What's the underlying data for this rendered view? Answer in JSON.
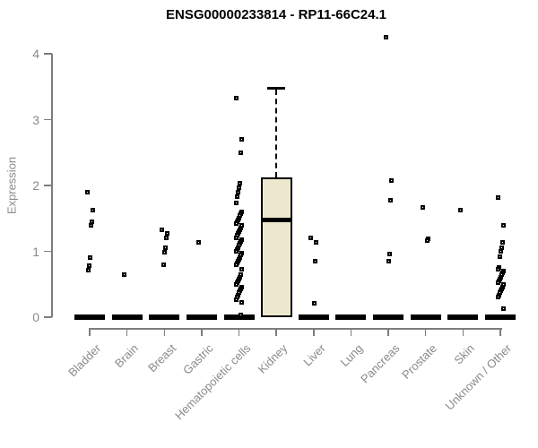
{
  "chart_data": {
    "type": "boxplot",
    "title": "ENSG00000233814 - RP11-66C24.1",
    "ylabel": "Expression",
    "ylim": [
      0,
      4
    ],
    "yticks": [
      0,
      1,
      2,
      3,
      4
    ],
    "grid": false,
    "legend": "none",
    "categories": [
      "Bladder",
      "Brain",
      "Breast",
      "Gastric",
      "Hematopoietic cells",
      "Kidney",
      "Liver",
      "Lung",
      "Pancreas",
      "Prostate",
      "Skin",
      "Unknown / Other"
    ],
    "boxes": [
      {
        "category": "Bladder",
        "q1": 0,
        "median": 0,
        "q3": 0,
        "whisker_low": 0,
        "whisker_high": 0
      },
      {
        "category": "Brain",
        "q1": 0,
        "median": 0,
        "q3": 0,
        "whisker_low": 0,
        "whisker_high": 0
      },
      {
        "category": "Breast",
        "q1": 0,
        "median": 0,
        "q3": 0,
        "whisker_low": 0,
        "whisker_high": 0
      },
      {
        "category": "Gastric",
        "q1": 0,
        "median": 0,
        "q3": 0,
        "whisker_low": 0,
        "whisker_high": 0
      },
      {
        "category": "Hematopoietic cells",
        "q1": 0,
        "median": 0,
        "q3": 0,
        "whisker_low": 0,
        "whisker_high": 0
      },
      {
        "category": "Kidney",
        "q1": 0,
        "median": 1.47,
        "q3": 2.12,
        "whisker_low": 0,
        "whisker_high": 3.47
      },
      {
        "category": "Liver",
        "q1": 0,
        "median": 0,
        "q3": 0,
        "whisker_low": 0,
        "whisker_high": 0
      },
      {
        "category": "Lung",
        "q1": 0,
        "median": 0,
        "q3": 0,
        "whisker_low": 0,
        "whisker_high": 0
      },
      {
        "category": "Pancreas",
        "q1": 0,
        "median": 0,
        "q3": 0,
        "whisker_low": 0,
        "whisker_high": 0
      },
      {
        "category": "Prostate",
        "q1": 0,
        "median": 0,
        "q3": 0,
        "whisker_low": 0,
        "whisker_high": 0
      },
      {
        "category": "Skin",
        "q1": 0,
        "median": 0,
        "q3": 0,
        "whisker_low": 0,
        "whisker_high": 0
      },
      {
        "category": "Unknown / Other",
        "q1": 0,
        "median": 0,
        "q3": 0,
        "whisker_low": 0,
        "whisker_high": 0
      }
    ],
    "points": [
      {
        "category": "Bladder",
        "values": [
          1.9,
          1.63,
          1.45,
          1.4,
          0.9,
          0.78,
          0.72
        ]
      },
      {
        "category": "Brain",
        "values": [
          0.64
        ]
      },
      {
        "category": "Breast",
        "values": [
          1.33,
          1.27,
          1.2,
          1.06,
          0.98,
          0.8
        ]
      },
      {
        "category": "Gastric",
        "values": [
          1.14
        ]
      },
      {
        "category": "Hematopoietic cells",
        "values": [
          3.33,
          2.7,
          2.5,
          2.04,
          1.97,
          1.9,
          1.83,
          1.73,
          1.6,
          1.57,
          1.54,
          1.51,
          1.48,
          1.45,
          1.42,
          1.39,
          1.36,
          1.33,
          1.3,
          1.27,
          1.24,
          1.21,
          1.18,
          1.15,
          1.12,
          1.09,
          1.06,
          1.03,
          1.0,
          0.97,
          0.94,
          0.91,
          0.88,
          0.85,
          0.82,
          0.79,
          0.73,
          0.64,
          0.61,
          0.58,
          0.55,
          0.52,
          0.49,
          0.46,
          0.43,
          0.4,
          0.37,
          0.34,
          0.31,
          0.27,
          0.22,
          0.03
        ]
      },
      {
        "category": "Kidney",
        "values": []
      },
      {
        "category": "Liver",
        "values": [
          1.2,
          1.13,
          0.85,
          0.21
        ]
      },
      {
        "category": "Lung",
        "values": []
      },
      {
        "category": "Pancreas",
        "values": [
          4.25,
          2.08,
          1.78,
          0.96,
          0.85
        ]
      },
      {
        "category": "Prostate",
        "values": [
          1.67,
          1.19,
          1.17
        ]
      },
      {
        "category": "Skin",
        "values": [
          1.63
        ]
      },
      {
        "category": "Unknown / Other",
        "values": [
          1.81,
          1.4,
          1.14,
          1.05,
          1.0,
          0.92,
          0.76,
          0.73,
          0.7,
          0.67,
          0.64,
          0.61,
          0.58,
          0.55,
          0.52,
          0.49,
          0.46,
          0.43,
          0.4,
          0.37,
          0.34,
          0.31,
          0.13
        ]
      }
    ],
    "colors": {
      "box_fill": "#ece8cd",
      "box_border": "#000000",
      "marker": "#000000",
      "axis": "#7d7d7d",
      "tick_label": "#8a8a8a",
      "title": "#000000"
    }
  }
}
